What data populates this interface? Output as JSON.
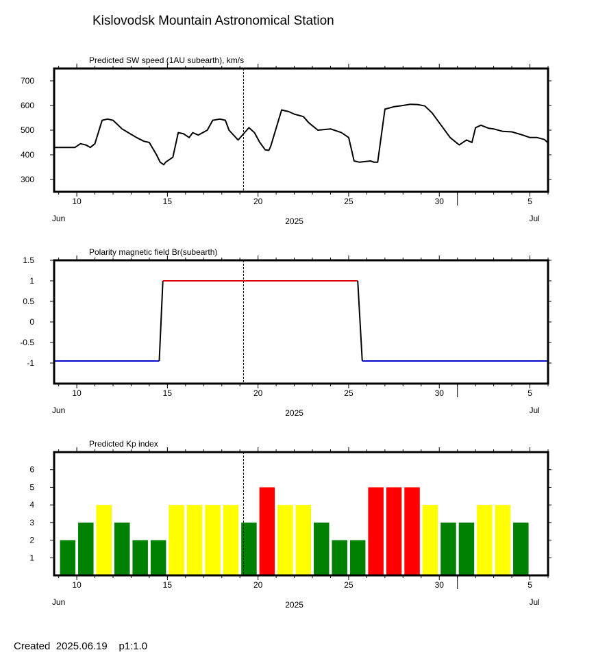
{
  "page": {
    "title": "Kislovodsk Mountain Astronomical Station",
    "footer": "Created  2025.06.19    p1:1.0"
  },
  "x_axis": {
    "tick_days": [
      10,
      15,
      20,
      25,
      30,
      35
    ],
    "tick_labels": [
      "10",
      "15",
      "20",
      "25",
      "30",
      "5"
    ],
    "month_labels": [
      {
        "day": 9,
        "text": "Jun"
      },
      {
        "day": 35.25,
        "text": "Jul"
      }
    ],
    "year_label": "2025",
    "month_boundary_day": 31,
    "xlim": [
      8.75,
      36
    ],
    "current_time_day": 19.2
  },
  "chart_data": [
    {
      "type": "line",
      "title": "Predicted SW speed (1AU subearth), km/s",
      "ylim": [
        250,
        750
      ],
      "yticks": [
        300,
        400,
        500,
        600,
        700
      ],
      "line_color": "#000000",
      "series": [
        {
          "x": [
            8.75,
            9.5,
            9.9,
            10.2,
            10.5,
            10.75,
            11.0,
            11.4,
            11.7,
            12.0,
            12.5,
            13.0,
            13.3,
            13.7,
            14.0,
            14.4,
            14.6,
            14.8,
            14.9,
            15.3,
            15.6,
            15.9,
            16.2,
            16.4,
            16.7,
            17.2,
            17.5,
            17.9,
            18.2,
            18.4,
            18.9,
            19.5,
            19.8,
            20.1,
            20.4,
            20.6,
            20.7,
            21.3,
            21.7,
            22.0,
            22.5,
            22.8,
            23.3,
            24.0,
            24.6,
            25.0,
            25.3,
            25.6,
            26.2,
            26.4,
            26.6,
            27.0,
            27.5,
            28.0,
            28.4,
            28.8,
            29.2,
            29.6,
            30.1,
            30.6,
            31.1,
            31.5,
            31.8,
            32.0,
            32.3,
            32.7,
            33.0,
            33.5,
            34.0,
            34.6,
            35.0,
            35.4,
            35.8,
            36.0
          ],
          "y": [
            430,
            430,
            430,
            445,
            440,
            430,
            445,
            540,
            545,
            540,
            505,
            483,
            470,
            455,
            450,
            400,
            370,
            360,
            370,
            390,
            490,
            485,
            470,
            490,
            480,
            500,
            540,
            545,
            540,
            500,
            460,
            510,
            490,
            450,
            420,
            418,
            435,
            582,
            575,
            565,
            555,
            530,
            500,
            505,
            490,
            470,
            375,
            370,
            375,
            370,
            370,
            585,
            595,
            600,
            605,
            604,
            598,
            570,
            520,
            470,
            440,
            460,
            450,
            510,
            520,
            508,
            505,
            495,
            493,
            480,
            470,
            470,
            462,
            448
          ]
        }
      ]
    },
    {
      "type": "line",
      "title": "Polarity magnetic field  Br(subearth)",
      "ylim": [
        -1.5,
        1.5
      ],
      "yticks": [
        -1,
        -0.5,
        0,
        0.5,
        1,
        1.5
      ],
      "ytick_labels": [
        "-1",
        "-0.5",
        "0",
        "0.5",
        "1",
        "1.5"
      ],
      "segments": [
        {
          "x": [
            8.75,
            14.55
          ],
          "y": [
            -0.95,
            -0.95
          ],
          "color": "#0000cc"
        },
        {
          "x": [
            14.55,
            14.75
          ],
          "y": [
            -0.95,
            1.0
          ],
          "color": "#000000"
        },
        {
          "x": [
            14.75,
            25.5
          ],
          "y": [
            1.0,
            1.0
          ],
          "color": "#dd0000"
        },
        {
          "x": [
            25.5,
            25.75
          ],
          "y": [
            1.0,
            -0.95
          ],
          "color": "#000000"
        },
        {
          "x": [
            25.75,
            36.0
          ],
          "y": [
            -0.95,
            -0.95
          ],
          "color": "#0000cc"
        }
      ]
    },
    {
      "type": "bar",
      "title": "Predicted Kp index",
      "ylim": [
        0,
        7
      ],
      "yticks": [
        1,
        2,
        3,
        4,
        5,
        6
      ],
      "bar_width_days": 0.85,
      "x": [
        9.5,
        10.5,
        11.5,
        12.5,
        13.5,
        14.5,
        15.5,
        16.5,
        17.5,
        18.5,
        19.5,
        20.5,
        21.5,
        22.5,
        23.5,
        24.5,
        25.5,
        26.5,
        27.5,
        28.5,
        29.5,
        30.5,
        31.5,
        32.5,
        33.5,
        34.5
      ],
      "values": [
        2,
        3,
        4,
        3,
        2,
        2,
        4,
        4,
        4,
        4,
        3,
        5,
        4,
        4,
        3,
        2,
        2,
        5,
        5,
        5,
        4,
        3,
        3,
        4,
        4,
        3
      ],
      "colors": {
        "2": "#008000",
        "3": "#008000",
        "4": "#ffff00",
        "5": "#ff0000"
      }
    }
  ]
}
